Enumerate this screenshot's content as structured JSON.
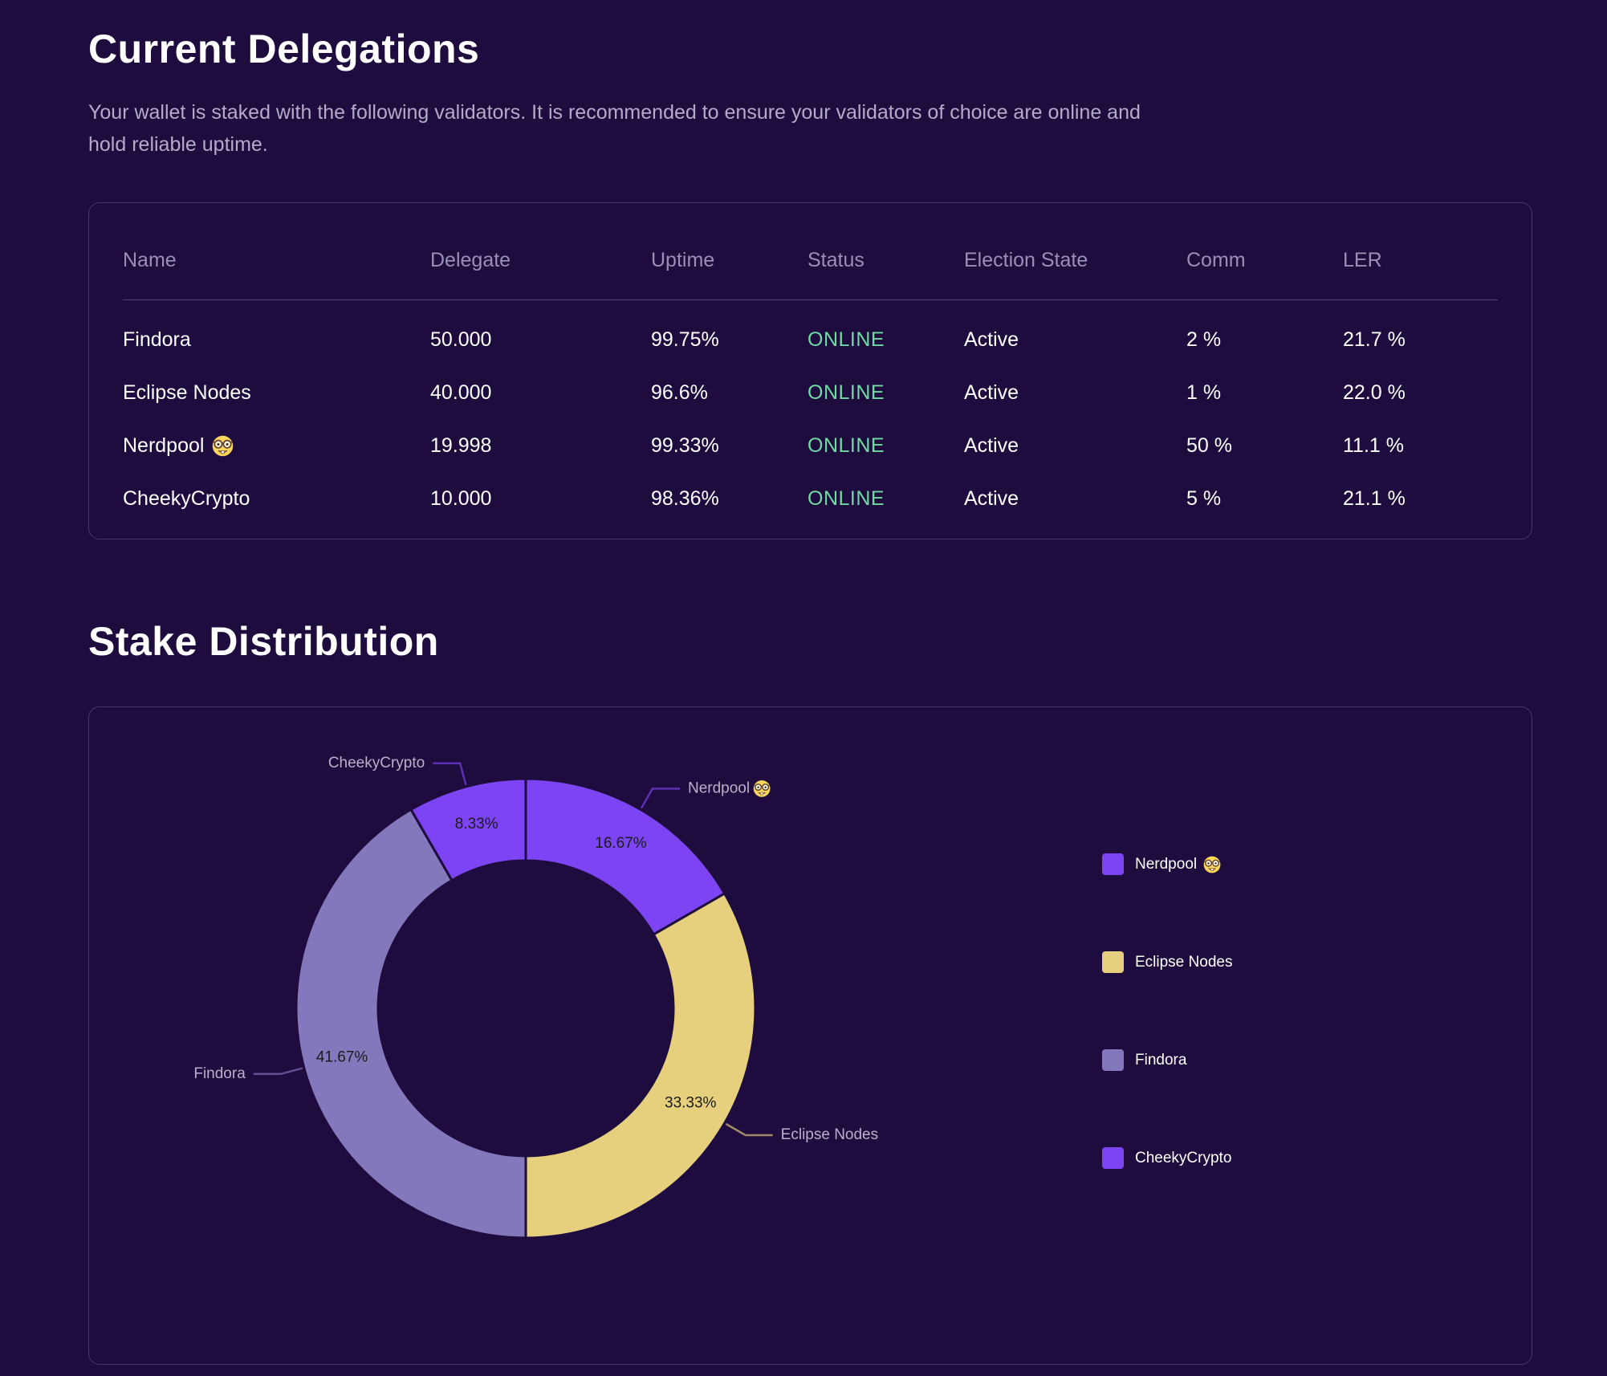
{
  "delegations": {
    "title": "Current Delegations",
    "description": "Your wallet is staked with the following validators. It is recommended to ensure your validators of choice are online and hold reliable uptime.",
    "table": {
      "columns": [
        "Name",
        "Delegate",
        "Uptime",
        "Status",
        "Election State",
        "Comm",
        "LER"
      ],
      "rows": [
        {
          "name": "Findora",
          "emoji": "",
          "delegate": "50.000",
          "uptime": "99.75%",
          "status": "ONLINE",
          "election_state": "Active",
          "comm": "2 %",
          "ler": "21.7 %"
        },
        {
          "name": "Eclipse Nodes",
          "emoji": "",
          "delegate": "40.000",
          "uptime": "96.6%",
          "status": "ONLINE",
          "election_state": "Active",
          "comm": "1 %",
          "ler": "22.0 %"
        },
        {
          "name": "Nerdpool",
          "emoji": "🤓",
          "delegate": "19.998",
          "uptime": "99.33%",
          "status": "ONLINE",
          "election_state": "Active",
          "comm": "50 %",
          "ler": "11.1 %"
        },
        {
          "name": "CheekyCrypto",
          "emoji": "",
          "delegate": "10.000",
          "uptime": "98.36%",
          "status": "ONLINE",
          "election_state": "Active",
          "comm": "5 %",
          "ler": "21.1 %"
        }
      ]
    }
  },
  "distribution": {
    "title": "Stake Distribution"
  },
  "chart_data": {
    "type": "pie",
    "donut": true,
    "title": "Stake Distribution",
    "start_angle_deg": 0,
    "direction": "clockwise",
    "inner_radius_ratio": 0.64,
    "legend_position": "right",
    "segments": [
      {
        "label": "Nerdpool",
        "emoji": "🤓",
        "value": 19.998,
        "percent": 16.67,
        "percent_label": "16.67%",
        "color": "#7c44f2"
      },
      {
        "label": "Eclipse Nodes",
        "emoji": "",
        "value": 40.0,
        "percent": 33.33,
        "percent_label": "33.33%",
        "color": "#e6d07e"
      },
      {
        "label": "Findora",
        "emoji": "",
        "value": 50.0,
        "percent": 41.67,
        "percent_label": "41.67%",
        "color": "#8478bd"
      },
      {
        "label": "CheekyCrypto",
        "emoji": "",
        "value": 10.0,
        "percent": 8.33,
        "percent_label": "8.33%",
        "color": "#7c44f2"
      }
    ]
  },
  "colors": {
    "background": "#1e0c3e",
    "card_border": "rgba(147,129,193,0.35)",
    "muted_text": "#9a8fb6",
    "paragraph_text": "#b4abc8",
    "status_online": "#72d9a3",
    "donut_label_text": "#1b1b1b",
    "callout_label_text": "#b9b0ca"
  }
}
